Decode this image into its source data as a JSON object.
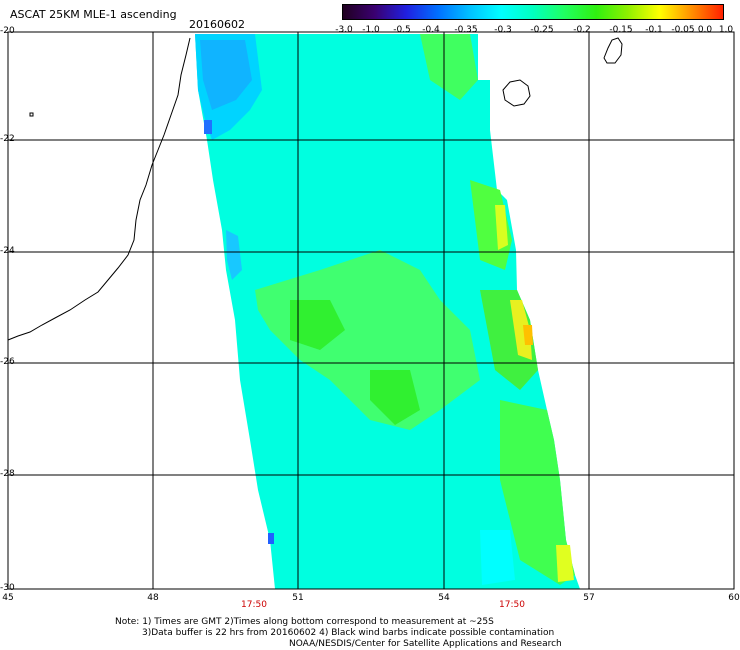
{
  "header": {
    "title": "ASCAT 25KM MLE-1 ascending",
    "date": "20160602"
  },
  "colorbar": {
    "labels": [
      "-3.0",
      "-1.0",
      "-0.5",
      "-0.4",
      "-0.35",
      "-0.3",
      "-0.25",
      "-0.2",
      "-0.15",
      "-0.1",
      "-0.05",
      "0.0",
      "1.0"
    ],
    "colors": [
      "#200020",
      "#3a0070",
      "#2020e0",
      "#0070ff",
      "#00c0ff",
      "#00ffff",
      "#00ffc0",
      "#20ff60",
      "#30f010",
      "#90f000",
      "#ffff00",
      "#ff9000",
      "#ff2000"
    ]
  },
  "axes": {
    "lat_labels": [
      "-20",
      "-22",
      "-24",
      "-26",
      "-28",
      "-30"
    ],
    "lon_labels": [
      "45",
      "48",
      "51",
      "54",
      "57",
      "60"
    ],
    "time_labels": [
      "17:50",
      "17:50"
    ]
  },
  "notes": {
    "line1": "Note: 1) Times are GMT 2)Times along bottom correspond to measurement at ~25S",
    "line2": "3)Data buffer is 22 hrs from 20160602 4) Black wind barbs indicate possible contamination",
    "line3": "NOAA/NESDIS/Center for Satellite Applications and Research"
  }
}
